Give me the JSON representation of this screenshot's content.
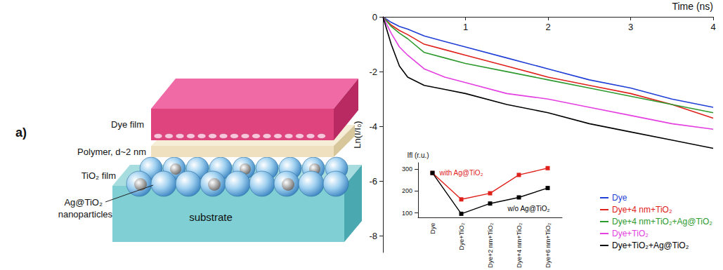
{
  "diagram": {
    "panel_label": "a)",
    "layers": {
      "dye": "Dye film",
      "polymer": "Polymer, d~2 nm",
      "tio2": "TiO₂ film",
      "particles": [
        "Ag@TiO₂",
        "nanoparticles"
      ],
      "substrate": "substrate"
    }
  },
  "chart_data": [
    {
      "type": "line",
      "x_label": "Time (ns)",
      "y_label": "Ln(I/I₀)",
      "x": [
        0,
        0.1,
        0.2,
        0.3,
        0.5,
        0.75,
        1,
        1.5,
        2,
        2.5,
        3,
        3.5,
        4
      ],
      "series": [
        {
          "name": "Dye",
          "color": "#1f3fd6",
          "values": [
            0,
            -0.2,
            -0.35,
            -0.45,
            -0.7,
            -0.9,
            -1.1,
            -1.5,
            -1.9,
            -2.3,
            -2.6,
            -3.0,
            -3.3
          ]
        },
        {
          "name": "Dye+4 nm+TiO₂",
          "color": "#e0201b",
          "values": [
            0,
            -0.3,
            -0.5,
            -0.65,
            -1.0,
            -1.2,
            -1.4,
            -1.8,
            -2.2,
            -2.5,
            -2.8,
            -3.2,
            -3.7
          ]
        },
        {
          "name": "Dye+4 nm+TiO₂+Ag@TiO₂",
          "color": "#2e9a2e",
          "values": [
            0,
            -0.35,
            -0.6,
            -0.8,
            -1.3,
            -1.5,
            -1.7,
            -2.0,
            -2.3,
            -2.6,
            -2.9,
            -3.2,
            -3.5
          ]
        },
        {
          "name": "Dye+TiO₂",
          "color": "#e43fe0",
          "values": [
            0,
            -0.6,
            -1.1,
            -1.4,
            -1.9,
            -2.2,
            -2.4,
            -2.8,
            -3.0,
            -3.3,
            -3.6,
            -3.9,
            -4.1
          ]
        },
        {
          "name": "Dye+TiO₂+Ag@TiO₂",
          "color": "#000000",
          "values": [
            0,
            -1.0,
            -1.8,
            -2.2,
            -2.5,
            -2.65,
            -2.8,
            -3.2,
            -3.5,
            -3.9,
            -4.2,
            -4.5,
            -4.8
          ]
        }
      ],
      "xlim": [
        0,
        4
      ],
      "xticks": [
        1,
        2,
        3,
        4
      ],
      "ylim": [
        -8.6,
        0
      ],
      "yticks": [
        -8,
        -6,
        -4,
        -2,
        0
      ],
      "legend": "lower right",
      "grid": false
    },
    {
      "type": "line",
      "y_label": "Ifl (r.u.)",
      "categories": [
        "Dye",
        "Dye+TiO₂",
        "Dye+2 nm+TiO₂",
        "Dye+4 nm+TiO₂",
        "Dye+6 nm+TiO₂"
      ],
      "series": [
        {
          "name": "with Ag@TiO₂",
          "color": "#e0201b",
          "marker": "square",
          "values": [
            283,
            162,
            190,
            274,
            305
          ]
        },
        {
          "name": "w/o Ag@TiO₂",
          "color": "#000000",
          "marker": "square",
          "values": [
            283,
            96,
            143,
            171,
            214
          ]
        }
      ],
      "ylim": [
        80,
        330
      ],
      "yticks": [
        100,
        200,
        300
      ],
      "grid": false
    }
  ]
}
